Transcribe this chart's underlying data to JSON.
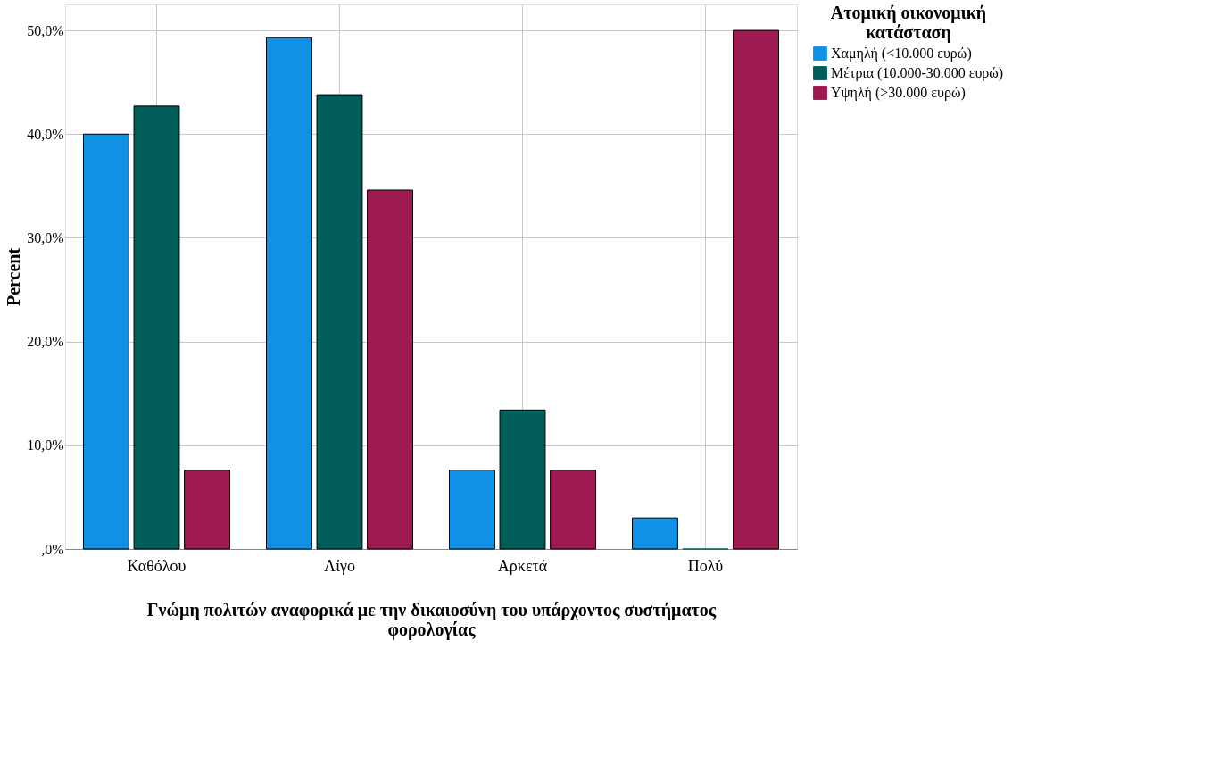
{
  "chart_data": {
    "type": "bar",
    "xlabel": "Γνώμη πολιτών αναφορικά με την δικαιοσύνη του υπάρχοντος συστήματος φορολογίας",
    "ylabel": "Percent",
    "legend_title": "Ατομική οικονομική κατάσταση",
    "categories": [
      "Καθόλου",
      "Λίγο",
      "Αρκετά",
      "Πολύ"
    ],
    "series": [
      {
        "name": "Χαμηλή (<10.000 ευρώ)",
        "color": "#1191e6",
        "values": [
          40.0,
          49.3,
          7.6,
          3.0
        ]
      },
      {
        "name": "Μέτρια (10.000-30.000 ευρώ)",
        "color": "#025e5a",
        "values": [
          42.7,
          43.8,
          13.4,
          0
        ]
      },
      {
        "name": "Υψηλή (>30.000 ευρώ)",
        "color": "#9e1a50",
        "values": [
          7.6,
          34.6,
          7.6,
          50.0
        ]
      }
    ],
    "ylim": [
      0,
      52.5
    ],
    "yticks": [
      {
        "value": 0,
        "label": ",0%"
      },
      {
        "value": 10,
        "label": "10,0%"
      },
      {
        "value": 20,
        "label": "20,0%"
      },
      {
        "value": 30,
        "label": "30,0%"
      },
      {
        "value": 40,
        "label": "40,0%"
      },
      {
        "value": 50,
        "label": "50,0%"
      }
    ],
    "grid": true,
    "legend": "top right"
  }
}
